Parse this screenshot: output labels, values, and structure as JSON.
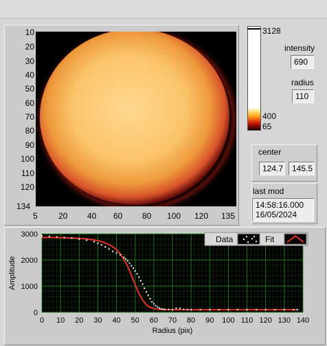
{
  "image_panel": {
    "y_ticks": [
      "10",
      "20",
      "30",
      "40",
      "50",
      "60",
      "70",
      "80",
      "90",
      "100",
      "110",
      "120",
      "134"
    ],
    "x_ticks": [
      "5",
      "20",
      "40",
      "60",
      "80",
      "100",
      "120",
      "135"
    ]
  },
  "colorbar": {
    "max_label": "3128",
    "mid_label": "400",
    "min_label": "65"
  },
  "indicators": {
    "intensity_label": "intensity",
    "intensity_value": "690",
    "radius_label": "radius",
    "radius_value": "110",
    "center_label": "center",
    "center_x": "124.7",
    "center_y": "145.5",
    "lastmod_label": "last mod",
    "lastmod_time": "14:58:16.000",
    "lastmod_date": "16/05/2024"
  },
  "chart_data": {
    "type": "scatter",
    "xlabel": "Radius (pix)",
    "ylabel": "Amplitude",
    "xlim": [
      0,
      140
    ],
    "ylim": [
      0,
      3000
    ],
    "x_ticks": [
      0,
      10,
      20,
      30,
      40,
      50,
      60,
      70,
      80,
      90,
      100,
      110,
      120,
      130,
      140
    ],
    "y_ticks": [
      0,
      1000,
      2000,
      3000
    ],
    "grid": true,
    "legend": "top-right",
    "series": [
      {
        "name": "Data",
        "style": "points",
        "color": "#ffffff",
        "x": [
          0,
          4,
          8,
          12,
          16,
          20,
          24,
          28,
          30,
          32,
          34,
          36,
          38,
          40,
          42,
          44,
          45,
          46,
          47,
          48,
          49,
          50,
          51,
          52,
          53,
          54,
          55,
          56,
          57,
          58,
          59,
          60,
          61,
          62,
          63,
          64,
          65,
          66,
          68,
          70,
          72,
          74,
          76,
          78,
          80,
          85,
          90,
          95,
          100,
          105,
          110,
          115,
          120,
          125,
          130,
          135,
          137
        ],
        "y": [
          2920,
          2900,
          2880,
          2860,
          2840,
          2800,
          2760,
          2700,
          2640,
          2580,
          2500,
          2430,
          2330,
          2270,
          2200,
          2100,
          2040,
          1970,
          1880,
          1780,
          1690,
          1580,
          1470,
          1350,
          1210,
          1080,
          920,
          780,
          650,
          520,
          400,
          330,
          250,
          200,
          160,
          130,
          120,
          110,
          110,
          100,
          150,
          150,
          110,
          100,
          100,
          100,
          100,
          100,
          100,
          100,
          100,
          100,
          100,
          100,
          100,
          100,
          100
        ]
      },
      {
        "name": "Fit",
        "style": "line",
        "color": "#e8332a",
        "x": [
          0,
          5,
          10,
          15,
          20,
          25,
          30,
          33,
          36,
          38,
          40,
          42,
          44,
          46,
          48,
          50,
          52,
          54,
          56,
          58,
          60,
          62,
          64,
          66,
          68,
          70,
          75,
          80,
          90,
          100,
          110,
          120,
          130,
          137
        ],
        "y": [
          2860,
          2860,
          2855,
          2845,
          2830,
          2800,
          2740,
          2680,
          2590,
          2510,
          2400,
          2240,
          2020,
          1760,
          1420,
          1060,
          730,
          470,
          290,
          190,
          140,
          115,
          105,
          100,
          100,
          100,
          100,
          100,
          100,
          100,
          100,
          100,
          100,
          100
        ]
      }
    ]
  },
  "colors": {
    "fit": "#e8332a",
    "data": "#ffffff",
    "plot_bg": "#000000",
    "grid": "#1f8a1f"
  }
}
